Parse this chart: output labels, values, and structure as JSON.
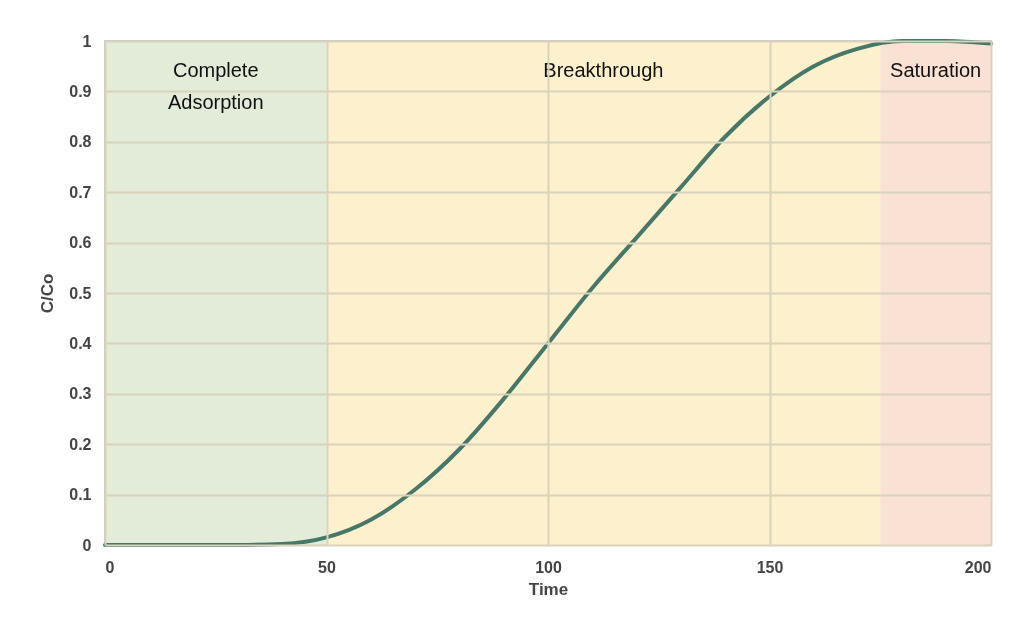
{
  "chart_data": {
    "type": "line",
    "xlabel": "Time",
    "ylabel": "C/Co",
    "x": [
      0,
      10,
      20,
      30,
      40,
      50,
      60,
      70,
      80,
      90,
      100,
      110,
      120,
      130,
      140,
      150,
      160,
      170,
      180,
      190,
      200
    ],
    "series": [
      {
        "color": "#477769",
        "values": [
          0,
          0,
          0,
          0,
          0.002,
          0.015,
          0.05,
          0.11,
          0.19,
          0.29,
          0.4,
          0.51,
          0.61,
          0.71,
          0.81,
          0.89,
          0.95,
          0.985,
          1.0,
          1.0,
          0.995
        ]
      }
    ],
    "xlim": [
      0,
      200
    ],
    "xticks": [
      0,
      50,
      100,
      150,
      200
    ],
    "ylim": [
      0,
      1
    ],
    "yticks": [
      0,
      0.1,
      0.2,
      0.3,
      0.4,
      0.5,
      0.6,
      0.7,
      0.8,
      0.9,
      1
    ],
    "grid": true,
    "line_style": "solid",
    "marker": "none",
    "bands": [
      {
        "axis": "x",
        "from": 0,
        "to": 50,
        "label": "Complete\nAdsorption",
        "color": "#e2ecd8"
      },
      {
        "axis": "x",
        "from": 50,
        "to": 175,
        "label": "Breakthrough",
        "color": "#fdf0cc"
      },
      {
        "axis": "x",
        "from": 175,
        "to": 200,
        "label": "Saturation",
        "color": "#f9e2d4"
      }
    ]
  }
}
